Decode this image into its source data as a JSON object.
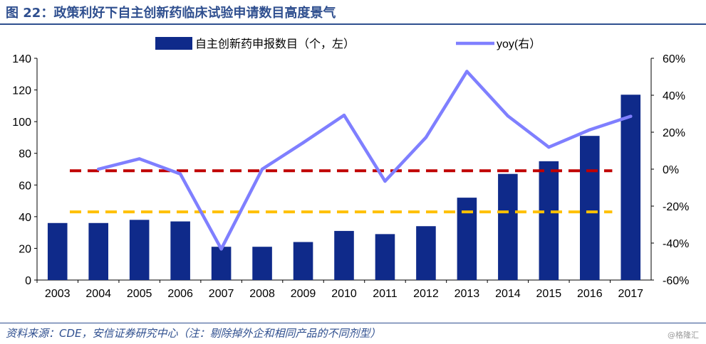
{
  "header": {
    "title": "图 22：政策利好下自主创新药临床试验申请数目高度景气"
  },
  "footer": {
    "source": "资料来源：CDE，安信证券研究中心（注：剔除掉外企和相同产品的不同剂型）",
    "watermark": "@格隆汇"
  },
  "chart_data": {
    "type": "bar",
    "categories": [
      "2003",
      "2004",
      "2005",
      "2006",
      "2007",
      "2008",
      "2009",
      "2010",
      "2011",
      "2012",
      "2013",
      "2014",
      "2015",
      "2016",
      "2017"
    ],
    "series": [
      {
        "name": "自主创新药申报数目（个，左）",
        "type": "bar",
        "axis": "left",
        "color": "#0f2a8a",
        "values": [
          36,
          36,
          38,
          37,
          21,
          21,
          24,
          31,
          29,
          34,
          52,
          67,
          75,
          91,
          117
        ]
      },
      {
        "name": "yoy(右）",
        "type": "line",
        "axis": "right",
        "color": "#7f7fff",
        "values": [
          null,
          0,
          5.6,
          -2.6,
          -43.2,
          0,
          14.3,
          29.2,
          -6.5,
          17.2,
          52.9,
          28.8,
          11.9,
          21.3,
          28.6
        ]
      }
    ],
    "reference_lines": [
      {
        "axis": "left",
        "value": 69,
        "color": "#c00000",
        "style": "dashed"
      },
      {
        "axis": "left",
        "value": 43,
        "color": "#ffc000",
        "style": "dashed"
      }
    ],
    "left_axis": {
      "ylim": [
        0,
        140
      ],
      "ticks": [
        "0",
        "20",
        "40",
        "60",
        "80",
        "100",
        "120",
        "140"
      ]
    },
    "right_axis": {
      "ylim": [
        -60,
        60
      ],
      "ticks": [
        "-60%",
        "-40%",
        "-20%",
        "0%",
        "20%",
        "40%",
        "60%"
      ]
    },
    "legend": {
      "position": "top"
    },
    "grid": false
  }
}
